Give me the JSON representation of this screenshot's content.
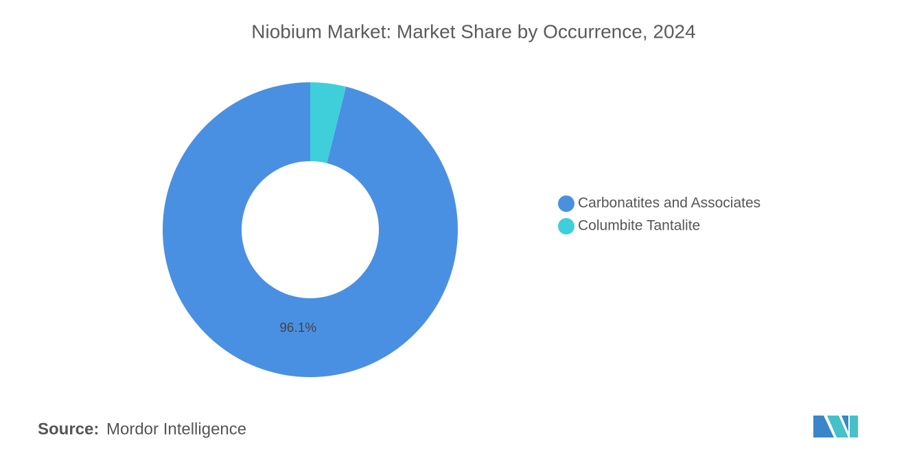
{
  "chart_data": {
    "type": "donut",
    "title": "Niobium Market: Market Share by Occurrence, 2024",
    "categories": [
      "Carbonatites and Associates",
      "Columbite Tantalite"
    ],
    "values": [
      96.1,
      3.9
    ],
    "value_labels": [
      "96.1%",
      null
    ],
    "colors": [
      "#4a90e2",
      "#3ecfdb"
    ],
    "legend": "right"
  },
  "source": {
    "label": "Source:",
    "name": "Mordor Intelligence"
  }
}
